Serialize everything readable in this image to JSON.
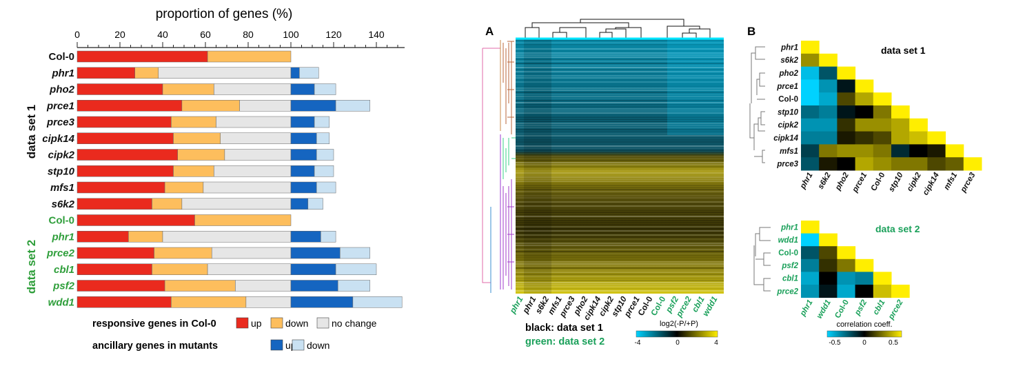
{
  "chart_data": [
    {
      "type": "bar",
      "stacked": true,
      "orientation": "horizontal",
      "title": "proportion of genes (%)",
      "xlim": [
        0,
        150
      ],
      "ticks": [
        0,
        20,
        40,
        60,
        80,
        100,
        120,
        140
      ],
      "group_labels": [
        "data set 1",
        "data set 2"
      ],
      "rows": [
        {
          "name": "Col-0",
          "group": 1,
          "italic": false,
          "up": 61,
          "down": 39,
          "nochange": 0,
          "anc_up": 0,
          "anc_down": 0
        },
        {
          "name": "phr1",
          "group": 1,
          "italic": true,
          "up": 27,
          "down": 11,
          "nochange": 62,
          "anc_up": 4,
          "anc_down": 9
        },
        {
          "name": "pho2",
          "group": 1,
          "italic": true,
          "up": 40,
          "down": 24,
          "nochange": 36,
          "anc_up": 11,
          "anc_down": 10
        },
        {
          "name": "prce1",
          "group": 1,
          "italic": true,
          "up": 49,
          "down": 27,
          "nochange": 24,
          "anc_up": 21,
          "anc_down": 16
        },
        {
          "name": "prce3",
          "group": 1,
          "italic": true,
          "up": 44,
          "down": 21,
          "nochange": 35,
          "anc_up": 11,
          "anc_down": 7
        },
        {
          "name": "cipk14",
          "group": 1,
          "italic": true,
          "up": 45,
          "down": 22,
          "nochange": 33,
          "anc_up": 12,
          "anc_down": 6
        },
        {
          "name": "cipk2",
          "group": 1,
          "italic": true,
          "up": 47,
          "down": 22,
          "nochange": 31,
          "anc_up": 12,
          "anc_down": 8
        },
        {
          "name": "stp10",
          "group": 1,
          "italic": true,
          "up": 45,
          "down": 19,
          "nochange": 36,
          "anc_up": 11,
          "anc_down": 9
        },
        {
          "name": "mfs1",
          "group": 1,
          "italic": true,
          "up": 41,
          "down": 18,
          "nochange": 41,
          "anc_up": 12,
          "anc_down": 9
        },
        {
          "name": "s6k2",
          "group": 1,
          "italic": true,
          "up": 35,
          "down": 14,
          "nochange": 51,
          "anc_up": 8,
          "anc_down": 7
        },
        {
          "name": "Col-0",
          "group": 2,
          "italic": false,
          "up": 55,
          "down": 45,
          "nochange": 0,
          "anc_up": 0,
          "anc_down": 0
        },
        {
          "name": "phr1",
          "group": 2,
          "italic": true,
          "up": 24,
          "down": 16,
          "nochange": 60,
          "anc_up": 14,
          "anc_down": 7
        },
        {
          "name": "prce2",
          "group": 2,
          "italic": true,
          "up": 36,
          "down": 27,
          "nochange": 37,
          "anc_up": 23,
          "anc_down": 14
        },
        {
          "name": "cbl1",
          "group": 2,
          "italic": true,
          "up": 35,
          "down": 26,
          "nochange": 39,
          "anc_up": 21,
          "anc_down": 19
        },
        {
          "name": "psf2",
          "group": 2,
          "italic": true,
          "up": 41,
          "down": 33,
          "nochange": 26,
          "anc_up": 22,
          "anc_down": 15
        },
        {
          "name": "wdd1",
          "group": 2,
          "italic": true,
          "up": 44,
          "down": 35,
          "nochange": 21,
          "anc_up": 29,
          "anc_down": 23
        }
      ],
      "legend": {
        "row1_label": "responsive genes in Col-0",
        "row2_label": "ancillary genes in mutants",
        "up": "up",
        "down": "down",
        "nochange": "no change"
      },
      "colors": {
        "up": "#ea2a1e",
        "down": "#fdbe5d",
        "nochange": "#e6e6e6",
        "anc_up": "#1565c0",
        "anc_down": "#c9e1f2",
        "green": "#2e9e3a"
      }
    },
    {
      "type": "heatmap",
      "panel_label": "A",
      "columns": [
        {
          "name": "phr1",
          "group": 2
        },
        {
          "name": "phr1",
          "group": 1
        },
        {
          "name": "s6k2",
          "group": 1
        },
        {
          "name": "mfs1",
          "group": 1
        },
        {
          "name": "prce3",
          "group": 1
        },
        {
          "name": "pho2",
          "group": 1
        },
        {
          "name": "cipk14",
          "group": 1
        },
        {
          "name": "cipk2",
          "group": 1
        },
        {
          "name": "stp10",
          "group": 1
        },
        {
          "name": "prce1",
          "group": 1
        },
        {
          "name": "Col-0",
          "group": 1
        },
        {
          "name": "Col-0",
          "group": 2
        },
        {
          "name": "psf2",
          "group": 2
        },
        {
          "name": "prce2",
          "group": 2
        },
        {
          "name": "cbl1",
          "group": 2
        },
        {
          "name": "wdd1",
          "group": 2
        }
      ],
      "legend_lines": [
        "black: data set 1",
        "green: data set 2"
      ],
      "colorbar": {
        "label": "log2(-P/+P)",
        "min": -4,
        "mid": 0,
        "max": 4
      }
    },
    {
      "type": "heatmap",
      "panel_label": "B",
      "subtitle": "data set 1",
      "labels": [
        "phr1",
        "s6k2",
        "pho2",
        "prce1",
        "Col-0",
        "stp10",
        "cipk2",
        "cipk14",
        "mfs1",
        "prce3"
      ],
      "italic": [
        true,
        true,
        true,
        true,
        false,
        true,
        true,
        true,
        true,
        true
      ],
      "lower_triangle": [
        [
          1.0
        ],
        [
          0.3,
          1.0
        ],
        [
          -0.45,
          -0.2,
          1.0
        ],
        [
          -0.55,
          -0.35,
          -0.05,
          1.0
        ],
        [
          -0.5,
          -0.4,
          0.15,
          0.35,
          1.0
        ],
        [
          -0.25,
          -0.3,
          -0.05,
          0.0,
          0.25,
          1.0
        ],
        [
          -0.35,
          -0.35,
          0.1,
          0.3,
          0.3,
          0.35,
          1.0
        ],
        [
          -0.3,
          -0.3,
          0.05,
          0.1,
          0.15,
          0.35,
          0.4,
          1.0
        ],
        [
          -0.15,
          0.25,
          0.3,
          0.3,
          0.25,
          -0.1,
          0.0,
          0.05,
          1.0
        ],
        [
          -0.2,
          0.05,
          0.0,
          0.35,
          0.3,
          0.25,
          0.25,
          0.15,
          0.2,
          1.0
        ]
      ]
    },
    {
      "type": "heatmap",
      "subtitle": "data set 2",
      "labels": [
        "phr1",
        "wdd1",
        "Col-0",
        "psf2",
        "cbl1",
        "prce2"
      ],
      "italic": [
        true,
        true,
        false,
        true,
        true,
        true
      ],
      "lower_triangle": [
        [
          1.0
        ],
        [
          -0.5,
          1.0
        ],
        [
          -0.2,
          0.15,
          1.0
        ],
        [
          -0.3,
          0.1,
          0.25,
          1.0
        ],
        [
          -0.4,
          0.0,
          -0.35,
          -0.3,
          1.0
        ],
        [
          -0.35,
          -0.05,
          -0.4,
          0.0,
          0.4,
          1.0
        ]
      ],
      "colorbar": {
        "label": "correlation coeff.",
        "min": -0.5,
        "mid": 0,
        "max": 0.5
      }
    }
  ]
}
